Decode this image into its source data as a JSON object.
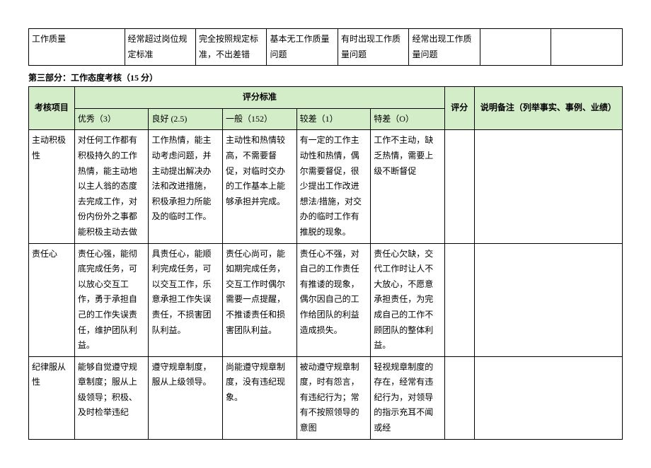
{
  "top_table": {
    "rows": [
      {
        "item": "工作质量",
        "c1": "经常超过岗位规定标准",
        "c2": "完全按照规定标准，不出差错",
        "c3": "基本无工作质量问题",
        "c4": "有时出现工作质量问题",
        "c5": "经常出现工作质量问题",
        "c6": "",
        "c7": ""
      }
    ]
  },
  "section3": {
    "title": "第三部分：工作态度考核（15 分）",
    "headers": {
      "item": "考核项目",
      "criteria": "评分标准",
      "s1": "优秀（3）",
      "s2": "良好 (2.5)",
      "s3": "一般（152）",
      "s4": "较差（1）",
      "s5": "特差（O）",
      "score": "评分",
      "note": "说明备注（列举事实、事例、业绩）"
    },
    "rows": [
      {
        "item": "主动积极性",
        "s1": "对任何工作都有积极持久的工作热情，能主动地以主人翁的态度去完成工作，对份内份外之事都能积极主动去做",
        "s2": "工作热情，能主动考虑问题，并主动提出解决办法和改进措施，积极承担力所能及的临时工作。",
        "s3": "主动性和热情较高，不需要督促，对临时交办的工作基本上能够承担并完成。",
        "s4": "有一定的工作主动性和热情，偶尔需要督促，很少提出工作改进想法/措施，对交办的临时工作有推脱的现象。",
        "s5": "工作不主动，缺乏热情，需要上级不断督促",
        "score": "",
        "note": ""
      },
      {
        "item": "责任心",
        "s1": "责任心强，能彻底完成任务，可以放心交互工作，勇于承担自己的工作失误责任，维护团队利益。",
        "s2": "具责任心，能顺利完成任务，可以交互工作，乐意承担工作失误责任，不损害团队利益。",
        "s3": "责任心尚可，能如期完成任务，交互工作时偶尔需要一点提醒，不推诿责任和损害团队利益。",
        "s4": "责任心不强，对自己的工作责任有推诿的现象，偶尔因自己的工作给团队的利益造成损失。",
        "s5": "责任心欠缺，交代工作时让人不大放心，不愿意承担责任，为完成自己的工作不顾团队的整体利益。",
        "score": "",
        "note": ""
      },
      {
        "item": "纪律服从性",
        "s1": "能够自觉遵守规章制度；服从上级领导；积极、及时检举违纪",
        "s2": "遵守规章制度，服从上级领导。",
        "s3": "尚能遵守规章制度，没有违纪现象。",
        "s4": "被动遵守规章制度，时有怨言，有违纪行为；常有不按照领导的意图",
        "s5": "轻视规章制度的存在，经常有违纪行为，对领导的指示充耳不闻或经",
        "score": "",
        "note": ""
      }
    ]
  }
}
